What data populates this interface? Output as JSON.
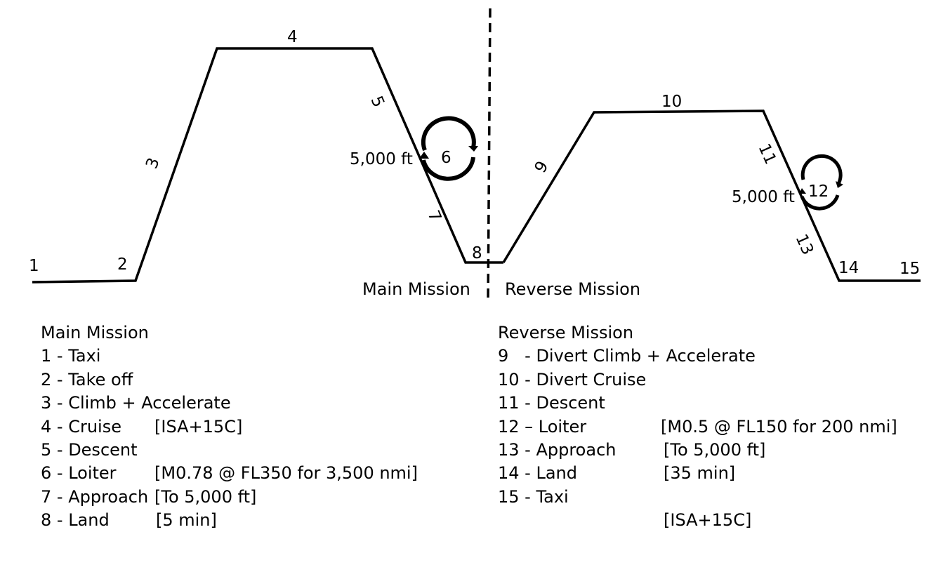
{
  "diagram": {
    "segment_numbers": [
      "1",
      "2",
      "3",
      "4",
      "5",
      "6",
      "7",
      "8",
      "9",
      "10",
      "11",
      "12",
      "13",
      "14",
      "15"
    ],
    "altitude_label_main": "5,000 ft",
    "altitude_label_reverse": "5,000 ft",
    "main_label": "Main Mission",
    "reverse_label": "Reverse Mission"
  },
  "legend_main": {
    "title": "Main Mission",
    "rows": [
      {
        "desc": "1 - Taxi",
        "detail": ""
      },
      {
        "desc": "2 - Take off",
        "detail": "[ISA+15C]"
      },
      {
        "desc": "3 - Climb + Accelerate",
        "detail": ""
      },
      {
        "desc": "4 - Cruise",
        "detail": "[M0.78 @ FL350 for 3,500 nmi]"
      },
      {
        "desc": "5 - Descent",
        "detail": "[To 5,000 ft]"
      },
      {
        "desc": "6 - Loiter",
        "detail": "[5 min]"
      },
      {
        "desc": "7 - Approach",
        "detail": ""
      },
      {
        "desc": "8 - Land",
        "detail": ""
      }
    ]
  },
  "legend_reverse": {
    "title": "Reverse Mission",
    "rows": [
      {
        "desc": "9   - Divert Climb + Accelerate",
        "detail": ""
      },
      {
        "desc": "10 - Divert Cruise",
        "detail": "[M0.5 @ FL150 for 200 nmi]"
      },
      {
        "desc": "11 - Descent",
        "detail": "[To 5,000 ft]"
      },
      {
        "desc": "12 – Loiter",
        "detail": "[35 min]"
      },
      {
        "desc": "13 - Approach",
        "detail": ""
      },
      {
        "desc": "14 - Land",
        "detail": "[ISA+15C]"
      },
      {
        "desc": "15 - Taxi",
        "detail": ""
      }
    ]
  }
}
